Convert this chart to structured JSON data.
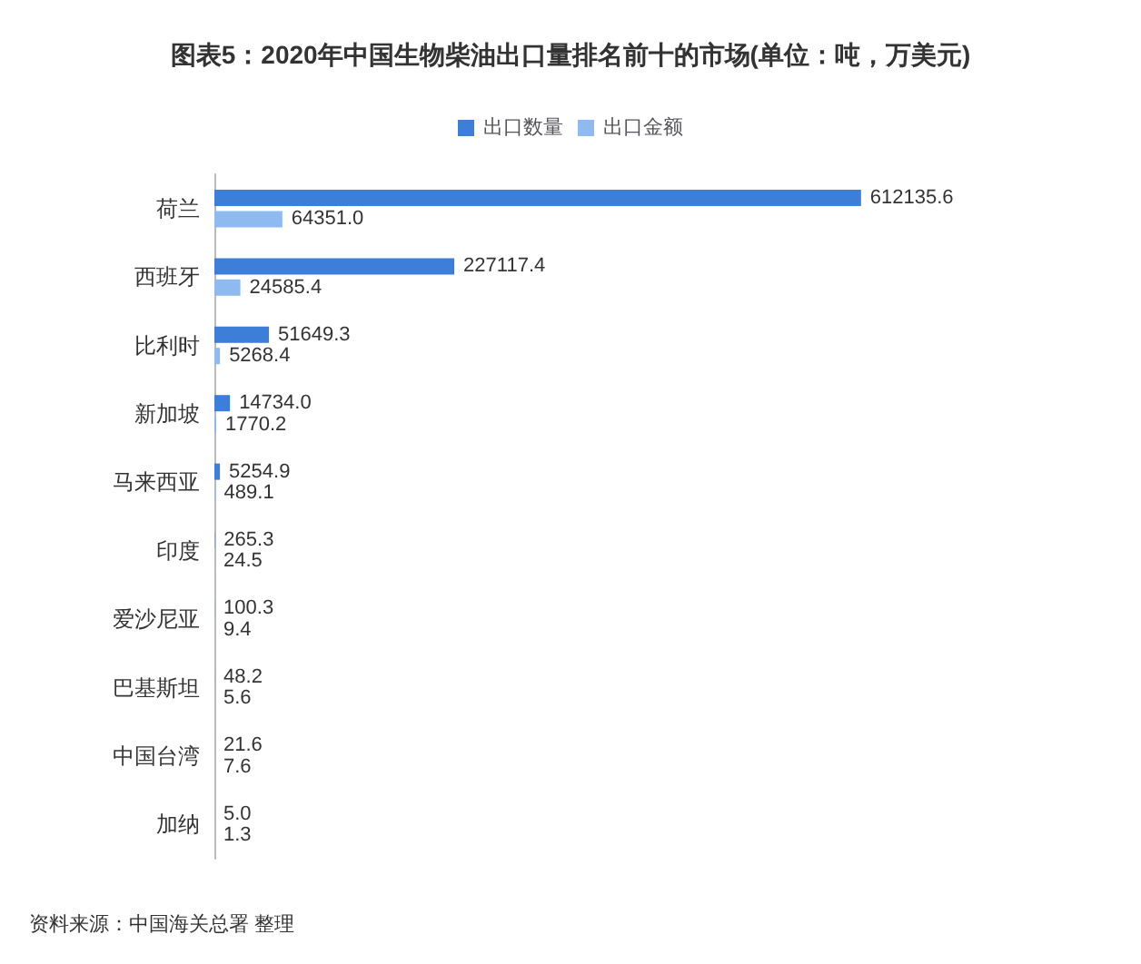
{
  "chart_data": {
    "type": "bar",
    "orientation": "horizontal",
    "title": "图表5：2020年中国生物柴油出口量排名前十的市场(单位：吨，万美元)",
    "categories": [
      "荷兰",
      "西班牙",
      "比利时",
      "新加坡",
      "马来西亚",
      "印度",
      "爱沙尼亚",
      "巴基斯坦",
      "中国台湾",
      "加纳"
    ],
    "series": [
      {
        "name": "出口数量",
        "color": "#3d7ed8",
        "values": [
          612135.6,
          227117.4,
          51649.3,
          14734.0,
          5254.9,
          265.3,
          100.3,
          48.2,
          21.6,
          5.0
        ],
        "value_labels": [
          "612135.6",
          "227117.4",
          "51649.3",
          "14734.0",
          "5254.9",
          "265.3",
          "100.3",
          "48.2",
          "21.6",
          "5.0"
        ]
      },
      {
        "name": "出口金额",
        "color": "#8fbaf0",
        "values": [
          64351.0,
          24585.4,
          5268.4,
          1770.2,
          489.1,
          24.5,
          9.4,
          5.6,
          7.6,
          1.3
        ],
        "value_labels": [
          "64351.0",
          "24585.4",
          "5268.4",
          "1770.2",
          "489.1",
          "24.5",
          "9.4",
          "5.6",
          "7.6",
          "1.3"
        ]
      }
    ],
    "legend": "top",
    "annotations": [
      "资料来源：中国海关总署 整理"
    ]
  }
}
